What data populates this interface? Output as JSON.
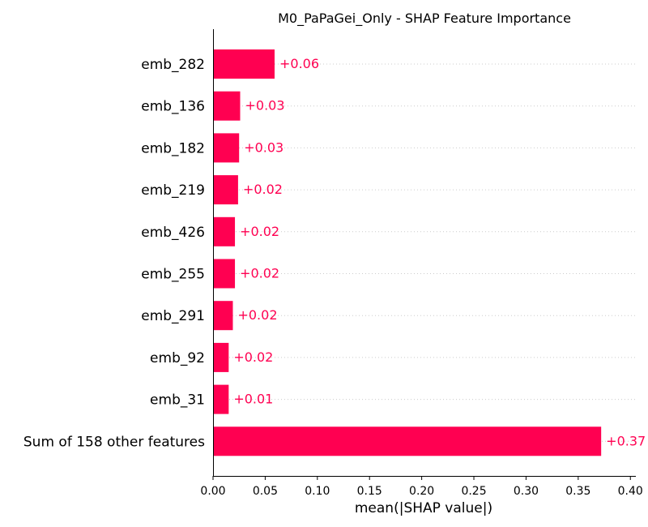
{
  "chart_data": {
    "type": "bar",
    "orientation": "horizontal",
    "title": "M0_PaPaGei_Only - SHAP Feature Importance",
    "xlabel": "mean(|SHAP value|)",
    "ylabel": "",
    "xlim": [
      0.0,
      0.41
    ],
    "xticks": [
      "0.00",
      "0.05",
      "0.10",
      "0.15",
      "0.20",
      "0.25",
      "0.30",
      "0.35",
      "0.40"
    ],
    "categories": [
      "emb_282",
      "emb_136",
      "emb_182",
      "emb_219",
      "emb_426",
      "emb_255",
      "emb_291",
      "emb_92",
      "emb_31",
      "Sum of 158 other features"
    ],
    "values": [
      0.059,
      0.026,
      0.025,
      0.024,
      0.021,
      0.021,
      0.019,
      0.015,
      0.015,
      0.372
    ],
    "data_labels": [
      "+0.06",
      "+0.03",
      "+0.03",
      "+0.02",
      "+0.02",
      "+0.02",
      "+0.02",
      "+0.02",
      "+0.01",
      "+0.37"
    ],
    "bar_color": "#ff0051",
    "grid": "dotted row guides",
    "legend": "none"
  }
}
